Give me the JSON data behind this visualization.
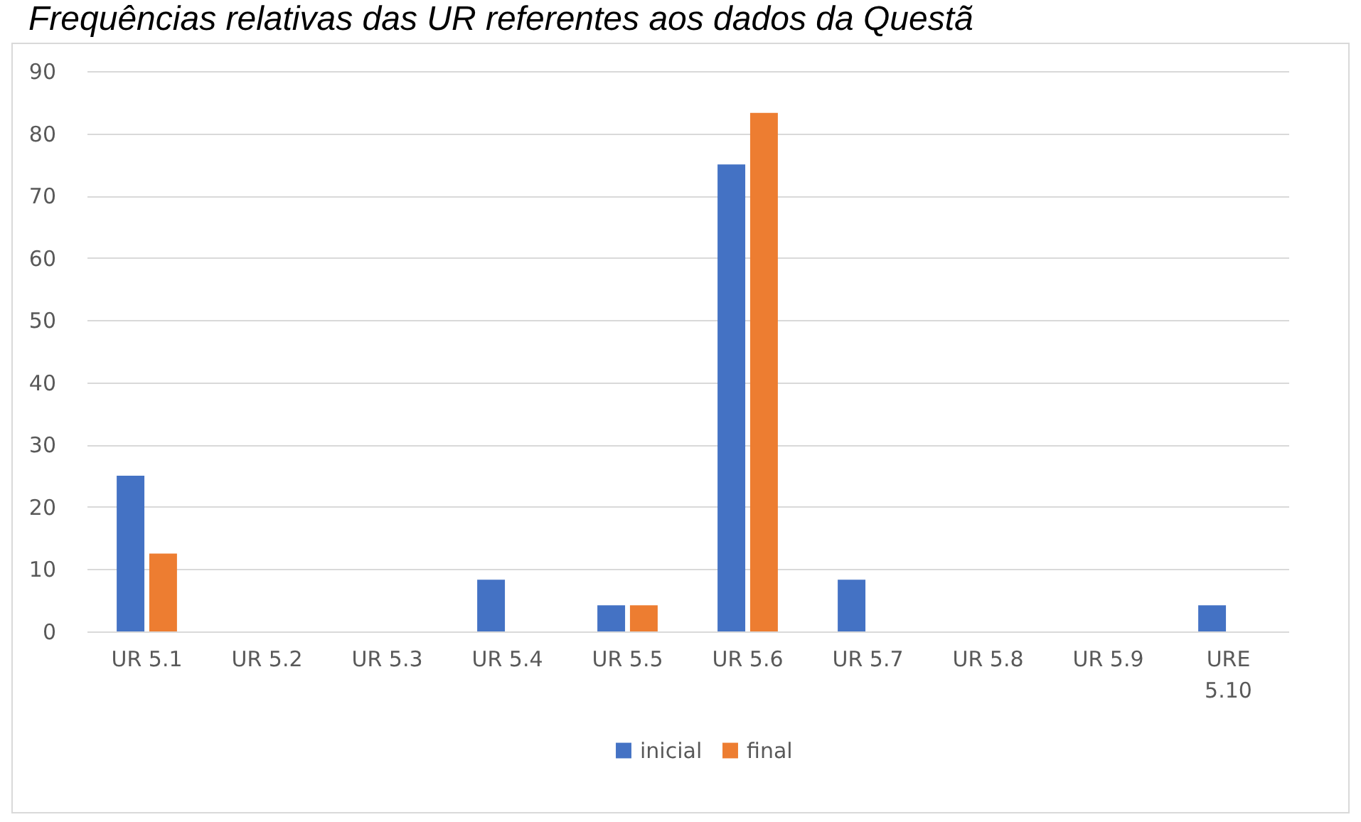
{
  "chart_data": {
    "type": "bar",
    "title": "Frequências relativas das UR referentes aos dados da Questã",
    "categories": [
      "UR 5.1",
      "UR 5.2",
      "UR 5.3",
      "UR 5.4",
      "UR 5.5",
      "UR 5.6",
      "UR 5.7",
      "UR 5.8",
      "UR 5.9",
      "URE 5.10"
    ],
    "series": [
      {
        "name": "inicial",
        "color": "#4472c4",
        "values": [
          25,
          0,
          0,
          8.3,
          4.2,
          75,
          8.3,
          0,
          0,
          4.2
        ]
      },
      {
        "name": "final",
        "color": "#ed7d31",
        "values": [
          12.5,
          0,
          0,
          0,
          4.2,
          83.3,
          0,
          0,
          0,
          0
        ]
      }
    ],
    "ylim": [
      0,
      90
    ],
    "yticks": [
      0,
      10,
      20,
      30,
      40,
      50,
      60,
      70,
      80,
      90
    ],
    "grid": "y",
    "legend": "bottom"
  }
}
